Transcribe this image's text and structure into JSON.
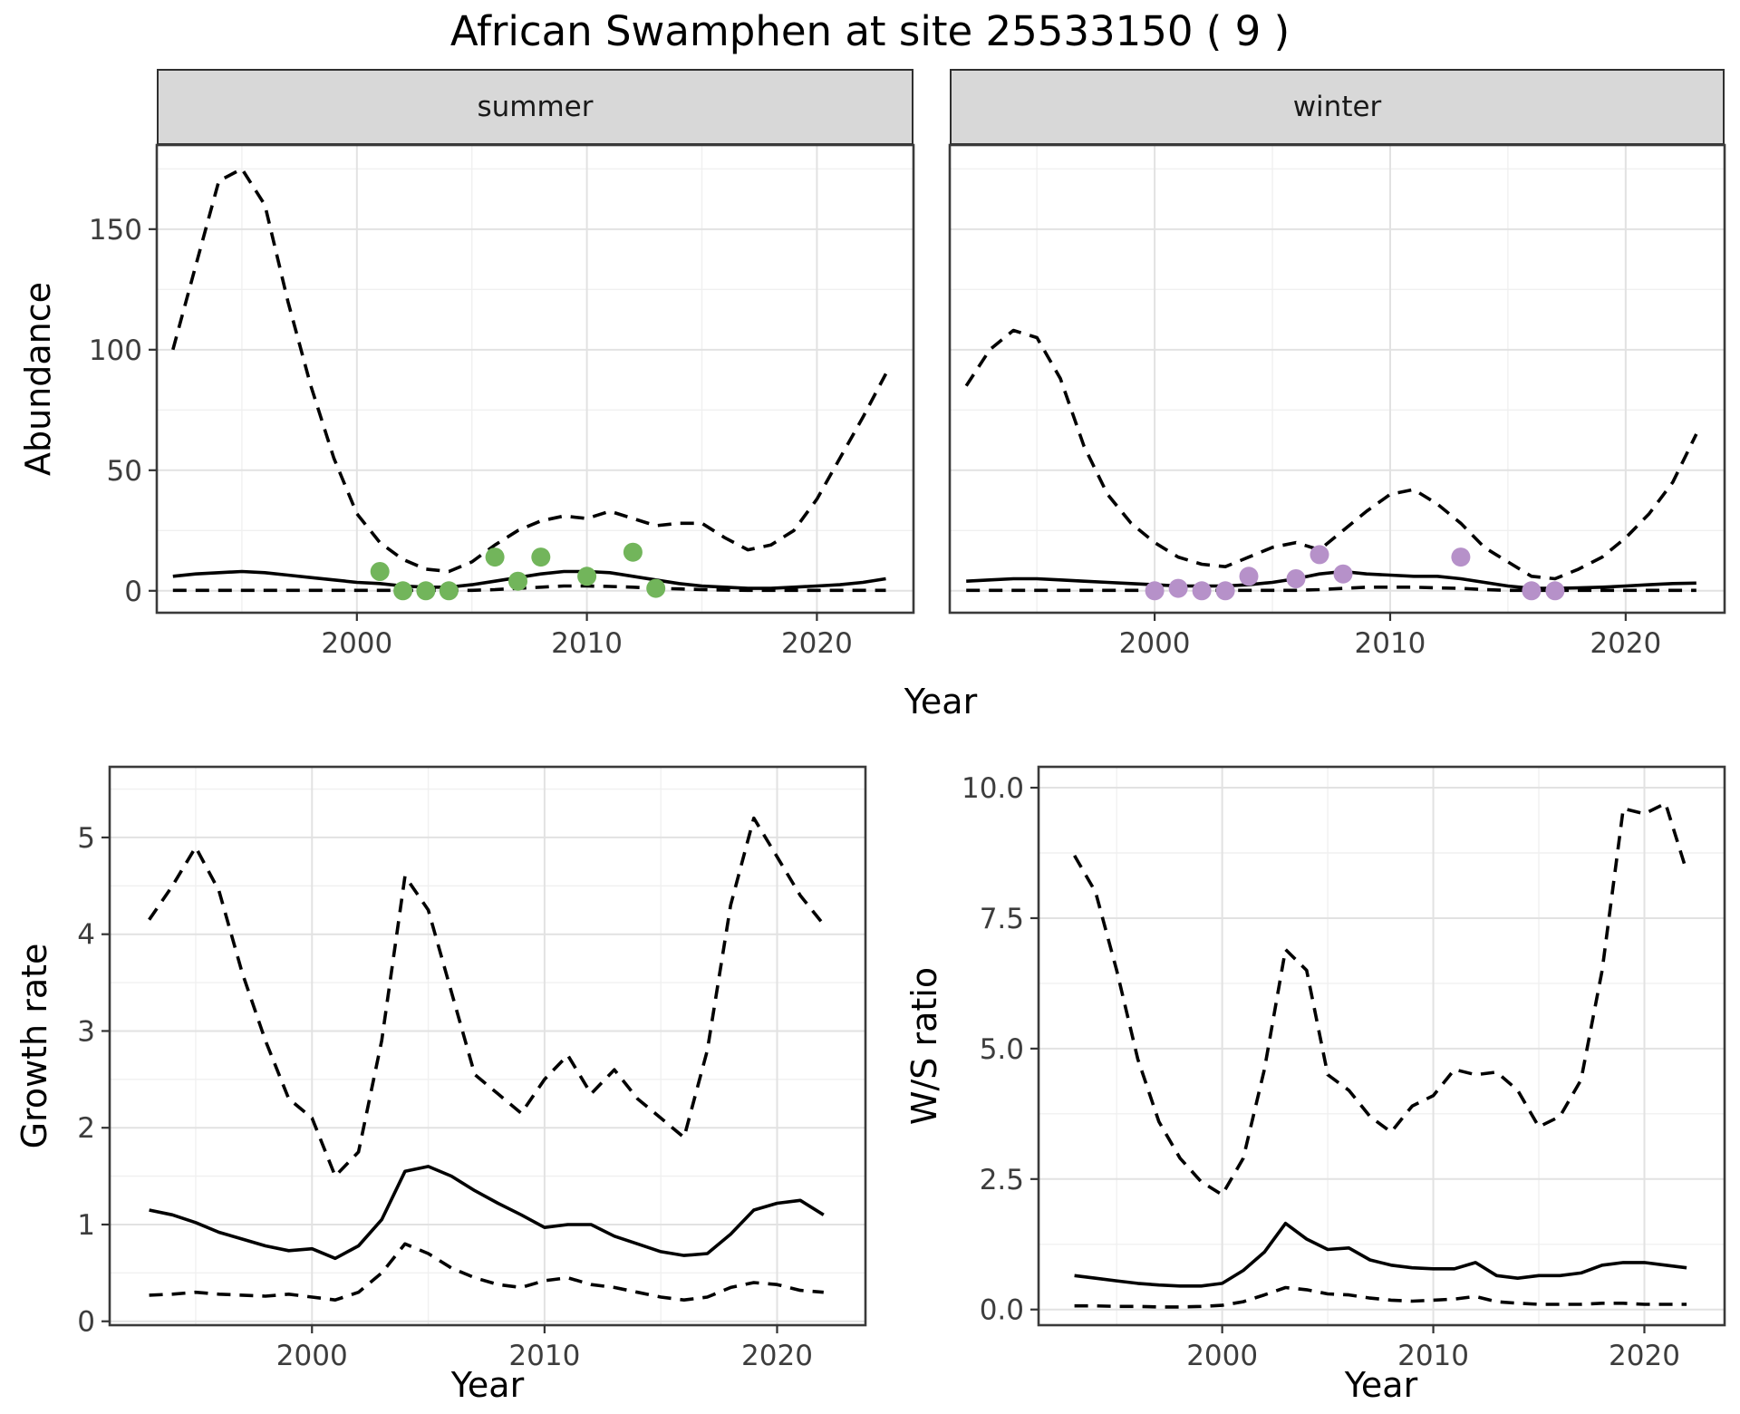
{
  "title": "African Swamphen at site 25533150 ( 9 )",
  "labels": {
    "shared_x": "Year"
  },
  "colors": {
    "line": "#000000",
    "summer_points": "#72b55b",
    "winter_points": "#b691c9",
    "strip_bg": "#d8d8d8",
    "grid_major": "#e2e2e2",
    "grid_minor": "#f0f0f0",
    "panel_border": "#3a3a3a"
  },
  "chart_data": [
    {
      "type": "line",
      "facet": "summer",
      "xlabel": "Year",
      "ylabel": "Abundance",
      "xlim": [
        1991.3,
        2024.2
      ],
      "ylim": [
        -9.1,
        184.9
      ],
      "xticks": {
        "values": [
          2000,
          2010,
          2020
        ],
        "labels": [
          "2000",
          "2010",
          "2020"
        ]
      },
      "yticks": {
        "values": [
          0,
          50,
          100,
          150
        ],
        "labels": [
          "0",
          "50",
          "100",
          "150"
        ]
      },
      "show_y_labels": true,
      "grid": true,
      "legend": "none",
      "x": [
        1992,
        1993,
        1994,
        1995,
        1996,
        1997,
        1998,
        1999,
        2000,
        2001,
        2002,
        2003,
        2004,
        2005,
        2006,
        2007,
        2008,
        2009,
        2010,
        2011,
        2012,
        2013,
        2014,
        2015,
        2016,
        2017,
        2018,
        2019,
        2020,
        2021,
        2022,
        2023
      ],
      "series": [
        {
          "name": "upper_ci",
          "dashed": true,
          "values": [
            100,
            135,
            170,
            175,
            160,
            120,
            85,
            55,
            32,
            20,
            13,
            9,
            8,
            12,
            19,
            25,
            29,
            31,
            30,
            33,
            30,
            27,
            28,
            28,
            22,
            17,
            19,
            25,
            38,
            55,
            72,
            90
          ]
        },
        {
          "name": "mean",
          "dashed": false,
          "values": [
            6,
            7,
            7.5,
            8,
            7.5,
            6.5,
            5.5,
            4.5,
            3.5,
            3,
            2,
            1.5,
            1.5,
            2.5,
            4,
            5.5,
            7,
            8,
            8,
            7.5,
            6,
            4.5,
            3,
            2,
            1.5,
            1,
            1,
            1.5,
            2,
            2.5,
            3.5,
            5
          ]
        },
        {
          "name": "lower_ci",
          "dashed": true,
          "values": [
            0.2,
            0.2,
            0.2,
            0.2,
            0.2,
            0.2,
            0.2,
            0.2,
            0.2,
            0.2,
            0.2,
            0.2,
            0.2,
            0.2,
            0.5,
            1,
            1.5,
            2,
            2,
            1.8,
            1.5,
            1,
            0.8,
            0.5,
            0.3,
            0.2,
            0.2,
            0.2,
            0.2,
            0.2,
            0.2,
            0.2
          ]
        }
      ],
      "points": {
        "name": "observed_counts",
        "color": "#72b55b",
        "x": [
          2001,
          2002,
          2003,
          2004,
          2006,
          2007,
          2008,
          2010,
          2012,
          2013
        ],
        "y": [
          8,
          0,
          0,
          0,
          14,
          4,
          14,
          6,
          16,
          1
        ]
      }
    },
    {
      "type": "line",
      "facet": "winter",
      "xlabel": "Year",
      "ylabel": "Abundance",
      "xlim": [
        1991.3,
        2024.2
      ],
      "ylim": [
        -9.1,
        184.9
      ],
      "xticks": {
        "values": [
          2000,
          2010,
          2020
        ],
        "labels": [
          "2000",
          "2010",
          "2020"
        ]
      },
      "yticks": {
        "values": [
          0,
          50,
          100,
          150
        ],
        "labels": [
          "0",
          "50",
          "100",
          "150"
        ]
      },
      "show_y_labels": false,
      "grid": true,
      "legend": "none",
      "x": [
        1992,
        1993,
        1994,
        1995,
        1996,
        1997,
        1998,
        1999,
        2000,
        2001,
        2002,
        2003,
        2004,
        2005,
        2006,
        2007,
        2008,
        2009,
        2010,
        2011,
        2012,
        2013,
        2014,
        2015,
        2016,
        2017,
        2018,
        2019,
        2020,
        2021,
        2022,
        2023
      ],
      "series": [
        {
          "name": "upper_ci",
          "dashed": true,
          "values": [
            85,
            100,
            108,
            105,
            88,
            60,
            40,
            28,
            20,
            14,
            11,
            10,
            14,
            18,
            20,
            17,
            25,
            33,
            40,
            42,
            36,
            28,
            18,
            12,
            6,
            5,
            9,
            14,
            22,
            32,
            45,
            65
          ]
        },
        {
          "name": "mean",
          "dashed": false,
          "values": [
            4,
            4.5,
            5,
            5,
            4.5,
            4,
            3.5,
            3,
            2.5,
            2,
            2,
            2,
            2.5,
            3.5,
            5,
            7,
            8,
            7,
            6.5,
            6,
            6,
            5,
            3.5,
            2,
            1,
            1,
            1.2,
            1.5,
            2,
            2.5,
            3,
            3.2
          ]
        },
        {
          "name": "lower_ci",
          "dashed": true,
          "values": [
            0.2,
            0.2,
            0.2,
            0.2,
            0.2,
            0.2,
            0.2,
            0.2,
            0.2,
            0.2,
            0.2,
            0.2,
            0.2,
            0.2,
            0.2,
            0.5,
            1,
            1.5,
            1.5,
            1.5,
            1.2,
            1,
            0.5,
            0.2,
            0.2,
            0.2,
            0.2,
            0.2,
            0.2,
            0.2,
            0.2,
            0.2
          ]
        }
      ],
      "points": {
        "name": "observed_counts",
        "color": "#b691c9",
        "x": [
          2000,
          2001,
          2002,
          2003,
          2004,
          2006,
          2007,
          2008,
          2013,
          2016,
          2017
        ],
        "y": [
          0,
          1,
          0,
          0,
          6,
          5,
          15,
          7,
          14,
          0,
          0
        ]
      }
    },
    {
      "type": "line",
      "facet": "",
      "xlabel": "Year",
      "ylabel": "Growth rate",
      "xlim": [
        1991.3,
        2023.8
      ],
      "ylim": [
        -0.04,
        5.73
      ],
      "xticks": {
        "values": [
          2000,
          2010,
          2020
        ],
        "labels": [
          "2000",
          "2010",
          "2020"
        ]
      },
      "yticks": {
        "values": [
          0,
          1,
          2,
          3,
          4,
          5
        ],
        "labels": [
          "0",
          "1",
          "2",
          "3",
          "4",
          "5"
        ]
      },
      "show_y_labels": true,
      "grid": true,
      "legend": "none",
      "x": [
        1993,
        1994,
        1995,
        1996,
        1997,
        1998,
        1999,
        2000,
        2001,
        2002,
        2003,
        2004,
        2005,
        2006,
        2007,
        2008,
        2009,
        2010,
        2011,
        2012,
        2013,
        2014,
        2015,
        2016,
        2017,
        2018,
        2019,
        2020,
        2021,
        2022
      ],
      "series": [
        {
          "name": "upper_ci",
          "dashed": true,
          "values": [
            4.15,
            4.5,
            4.9,
            4.45,
            3.6,
            2.9,
            2.3,
            2.1,
            1.5,
            1.75,
            2.9,
            4.6,
            4.25,
            3.4,
            2.55,
            2.35,
            2.15,
            2.5,
            2.75,
            2.35,
            2.6,
            2.3,
            2.1,
            1.9,
            2.8,
            4.3,
            5.2,
            4.8,
            4.4,
            4.1
          ]
        },
        {
          "name": "mean",
          "dashed": false,
          "values": [
            1.15,
            1.1,
            1.02,
            0.92,
            0.85,
            0.78,
            0.73,
            0.75,
            0.65,
            0.78,
            1.05,
            1.55,
            1.6,
            1.5,
            1.35,
            1.22,
            1.1,
            0.97,
            1.0,
            1.0,
            0.88,
            0.8,
            0.72,
            0.68,
            0.7,
            0.9,
            1.15,
            1.22,
            1.25,
            1.1
          ]
        },
        {
          "name": "lower_ci",
          "dashed": true,
          "values": [
            0.27,
            0.28,
            0.3,
            0.28,
            0.27,
            0.26,
            0.28,
            0.25,
            0.22,
            0.3,
            0.5,
            0.8,
            0.7,
            0.55,
            0.45,
            0.38,
            0.35,
            0.42,
            0.45,
            0.38,
            0.35,
            0.3,
            0.25,
            0.22,
            0.25,
            0.35,
            0.4,
            0.38,
            0.32,
            0.3
          ]
        }
      ]
    },
    {
      "type": "line",
      "facet": "",
      "xlabel": "Year",
      "ylabel": "W/S ratio",
      "xlim": [
        1991.3,
        2023.8
      ],
      "ylim": [
        -0.3,
        10.4
      ],
      "xticks": {
        "values": [
          2000,
          2010,
          2020
        ],
        "labels": [
          "2000",
          "2010",
          "2020"
        ]
      },
      "yticks": {
        "values": [
          0,
          2.5,
          5,
          7.5,
          10
        ],
        "labels": [
          "0.0",
          "2.5",
          "5.0",
          "7.5",
          "10.0"
        ]
      },
      "show_y_labels": true,
      "grid": true,
      "legend": "none",
      "x": [
        1993,
        1994,
        1995,
        1996,
        1997,
        1998,
        1999,
        2000,
        2001,
        2002,
        2003,
        2004,
        2005,
        2006,
        2007,
        2008,
        2009,
        2010,
        2011,
        2012,
        2013,
        2014,
        2015,
        2016,
        2017,
        2018,
        2019,
        2020,
        2021,
        2022
      ],
      "series": [
        {
          "name": "upper_ci",
          "dashed": true,
          "values": [
            8.7,
            8.0,
            6.5,
            4.8,
            3.6,
            2.9,
            2.45,
            2.2,
            2.9,
            4.6,
            6.9,
            6.5,
            4.5,
            4.2,
            3.7,
            3.4,
            3.9,
            4.1,
            4.6,
            4.5,
            4.55,
            4.2,
            3.5,
            3.7,
            4.4,
            6.5,
            9.6,
            9.5,
            9.7,
            8.4
          ]
        },
        {
          "name": "mean",
          "dashed": false,
          "values": [
            0.65,
            0.6,
            0.55,
            0.5,
            0.47,
            0.45,
            0.45,
            0.5,
            0.75,
            1.1,
            1.65,
            1.35,
            1.15,
            1.18,
            0.95,
            0.85,
            0.8,
            0.78,
            0.78,
            0.9,
            0.65,
            0.6,
            0.65,
            0.65,
            0.7,
            0.85,
            0.9,
            0.9,
            0.85,
            0.8
          ]
        },
        {
          "name": "lower_ci",
          "dashed": true,
          "values": [
            0.07,
            0.07,
            0.06,
            0.06,
            0.05,
            0.05,
            0.06,
            0.08,
            0.15,
            0.28,
            0.42,
            0.38,
            0.3,
            0.28,
            0.22,
            0.18,
            0.16,
            0.18,
            0.2,
            0.25,
            0.15,
            0.12,
            0.1,
            0.1,
            0.1,
            0.12,
            0.12,
            0.1,
            0.1,
            0.1
          ]
        }
      ]
    }
  ]
}
